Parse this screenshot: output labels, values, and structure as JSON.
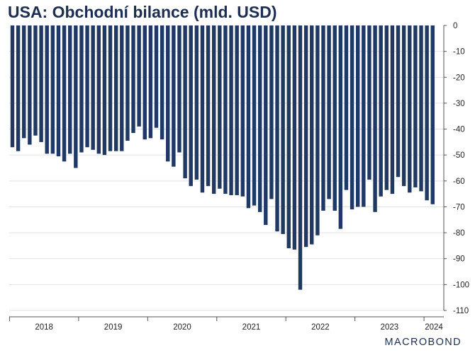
{
  "title": "USA: Obchodní bilance (mld. USD)",
  "logo": "MACROBOND",
  "colors": {
    "bar": "#1f3864",
    "grid": "#e3e3e3",
    "axis": "#555555",
    "text": "#1c2f52"
  },
  "chart_data": {
    "type": "bar",
    "title": "USA: Obchodní bilance (mld. USD)",
    "xlabel": "",
    "ylabel": "",
    "ylim": [
      -110,
      0
    ],
    "yticks": [
      0,
      -10,
      -20,
      -30,
      -40,
      -50,
      -60,
      -70,
      -80,
      -90,
      -100,
      -110
    ],
    "ytick_labels": [
      "0",
      "-10",
      "-20",
      "-30",
      "-40",
      "-50",
      "-60",
      "-70",
      "-80",
      "-90",
      "-100",
      "-110"
    ],
    "y_axis_side": "right",
    "grid": true,
    "xtick_labels": [
      "2018",
      "2019",
      "2020",
      "2021",
      "2022",
      "2023",
      "2024"
    ],
    "start": "2018-01",
    "frequency": "monthly",
    "series": [
      {
        "values": [
          -47,
          -48.5,
          -43.5,
          -46,
          -42.5,
          -45,
          -49.5,
          -49.5,
          -50.5,
          -52.5,
          -49.5,
          -55,
          -49,
          -47,
          -48,
          -49.5,
          -50,
          -48.5,
          -48.5,
          -48.5,
          -44.5,
          -41.5,
          -39,
          -44,
          -43.5,
          -39.5,
          -44,
          -52.5,
          -54.5,
          -49,
          -59,
          -62,
          -59.5,
          -64.5,
          -62,
          -65,
          -63,
          -65,
          -65.5,
          -65.5,
          -66,
          -70.5,
          -69.5,
          -72,
          -77,
          -67,
          -79.5,
          -80.5,
          -86,
          -86.5,
          -102,
          -85.5,
          -84.5,
          -81,
          -71.5,
          -67,
          -71.5,
          -78.5,
          -63.5,
          -71,
          -70,
          -70,
          -59.5,
          -72,
          -66,
          -63.5,
          -65,
          -58.5,
          -62,
          -64.5,
          -62.5,
          -64,
          -67.5,
          -69
        ]
      }
    ]
  }
}
